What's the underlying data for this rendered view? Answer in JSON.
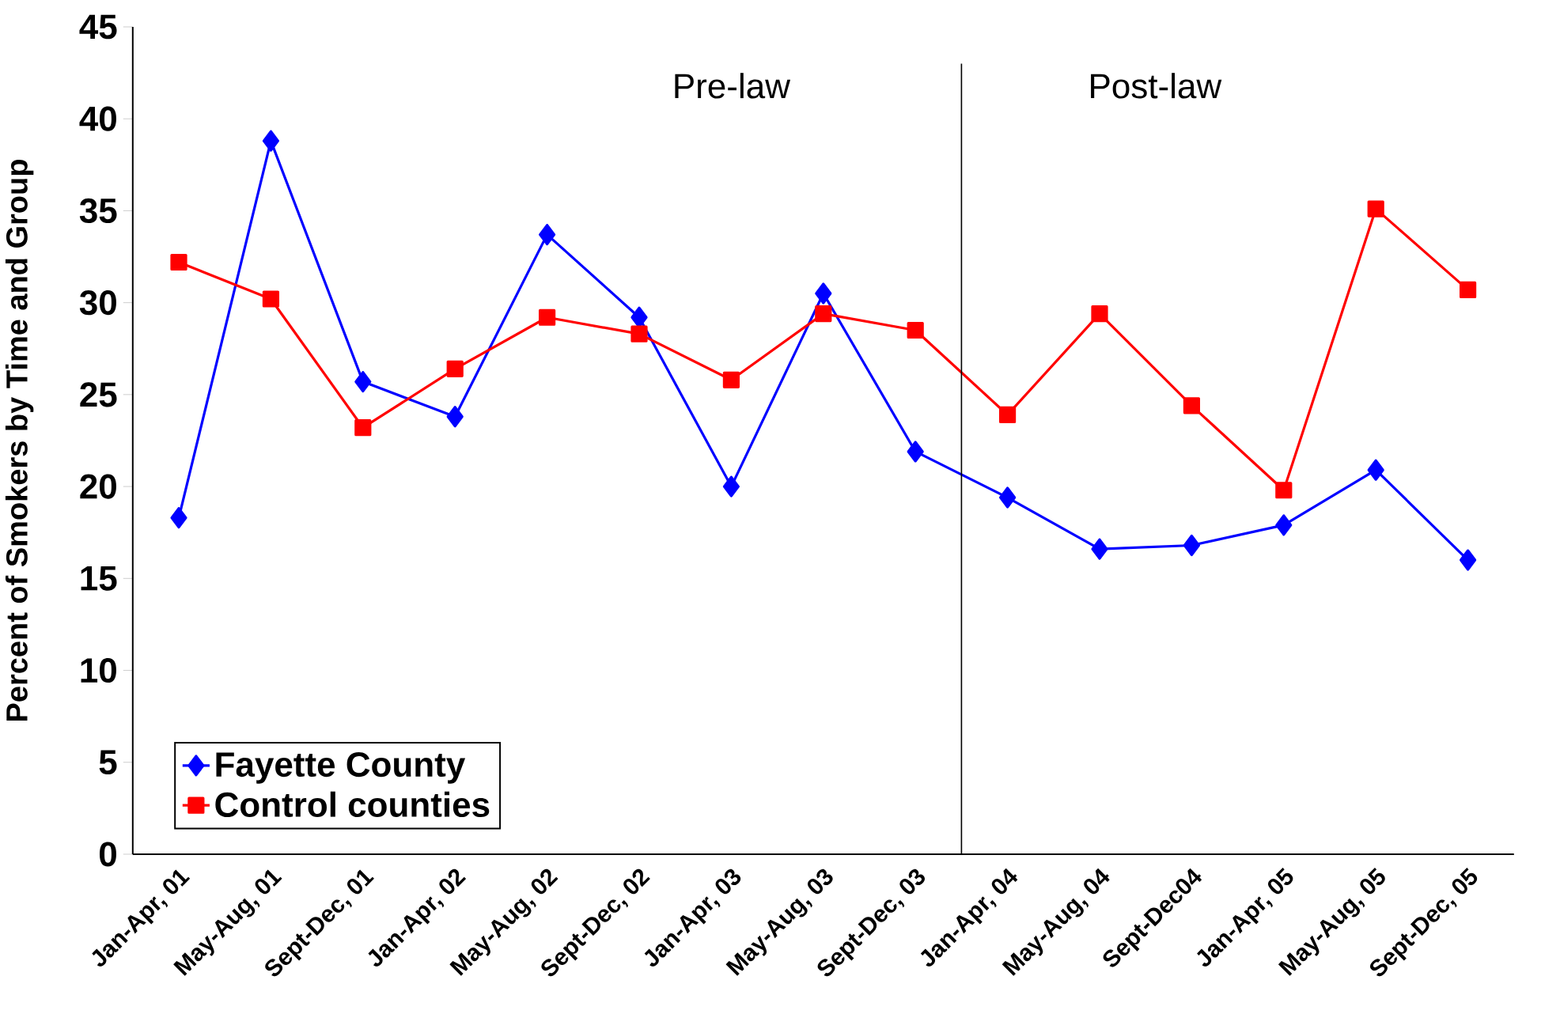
{
  "chart_data": {
    "type": "line",
    "ylabel": "Percent of Smokers  by Time and Group",
    "categories": [
      "Jan-Apr, 01",
      "May-Aug, 01",
      "Sept-Dec, 01",
      "Jan-Apr, 02",
      "May-Aug, 02",
      "Sept-Dec, 02",
      "Jan-Apr, 03",
      "May-Aug, 03",
      "Sept-Dec, 03",
      "Jan-Apr, 04",
      "May-Aug, 04",
      "Sept-Dec04",
      "Jan-Apr, 05",
      "May-Aug, 05",
      "Sept-Dec, 05"
    ],
    "series": [
      {
        "name": "Fayette County",
        "color": "#0000ff",
        "marker": "diamond",
        "values": [
          18.3,
          38.8,
          25.7,
          23.8,
          33.7,
          29.2,
          20.0,
          30.5,
          21.9,
          19.4,
          16.6,
          16.8,
          17.9,
          20.9,
          16.0
        ]
      },
      {
        "name": "Control counties",
        "color": "#ff0000",
        "marker": "square",
        "values": [
          32.2,
          30.2,
          23.2,
          26.4,
          29.2,
          28.3,
          25.8,
          29.4,
          28.5,
          23.9,
          29.4,
          24.4,
          19.8,
          35.1,
          30.7
        ]
      }
    ],
    "ylim": [
      0,
      45
    ],
    "yticks": [
      0,
      5,
      10,
      15,
      20,
      25,
      30,
      35,
      40,
      45
    ],
    "legend": "bottom left",
    "annotations": [
      "Pre-law",
      "Post-law"
    ]
  }
}
